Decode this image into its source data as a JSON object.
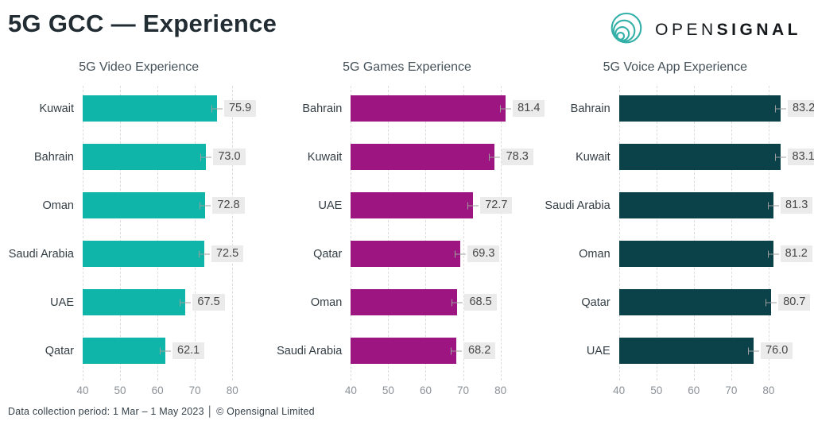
{
  "header": {
    "title": "5G GCC — Experience",
    "logo": {
      "word_light": "OPEN",
      "word_bold": "SIGNAL",
      "icon_color": "#35b0a8",
      "text_color": "#15191c"
    }
  },
  "style": {
    "chip_bg": "#ebebeb",
    "chip_text": "#474747",
    "grid_color": "#dcdcdc",
    "tick_color": "#8b9196",
    "category_color": "#333d44",
    "whisker_color": "#9e9e9e"
  },
  "chart_data": [
    {
      "type": "bar",
      "orientation": "horizontal",
      "title": "5G Video Experience",
      "categories": [
        "Kuwait",
        "Bahrain",
        "Oman",
        "Saudi Arabia",
        "UAE",
        "Qatar"
      ],
      "values": [
        75.9,
        73.0,
        72.8,
        72.5,
        67.5,
        62.1
      ],
      "bar_color": "#0fb5a9",
      "xlim": [
        40,
        90
      ],
      "ticks": [
        40,
        50,
        60,
        70,
        80
      ],
      "grid": "dashed-vertical",
      "value_labels": true,
      "legend": "none"
    },
    {
      "type": "bar",
      "orientation": "horizontal",
      "title": "5G Games Experience",
      "categories": [
        "Bahrain",
        "Kuwait",
        "UAE",
        "Qatar",
        "Oman",
        "Saudi Arabia"
      ],
      "values": [
        81.4,
        78.3,
        72.7,
        69.3,
        68.5,
        68.2
      ],
      "bar_color": "#9d1580",
      "xlim": [
        40,
        90
      ],
      "ticks": [
        40,
        50,
        60,
        70,
        80
      ],
      "grid": "dashed-vertical",
      "value_labels": true,
      "legend": "none"
    },
    {
      "type": "bar",
      "orientation": "horizontal",
      "title": "5G Voice App Experience",
      "categories": [
        "Bahrain",
        "Kuwait",
        "Saudi Arabia",
        "Oman",
        "Qatar",
        "UAE"
      ],
      "values": [
        83.2,
        83.1,
        81.3,
        81.2,
        80.7,
        76.0
      ],
      "bar_color": "#0b4149",
      "xlim": [
        40,
        90
      ],
      "ticks": [
        40,
        50,
        60,
        70,
        80
      ],
      "grid": "dashed-vertical",
      "value_labels": true,
      "legend": "none"
    }
  ],
  "footer": {
    "text": "Data collection period: 1 Mar – 1 May 2023 │ © Opensignal Limited"
  }
}
